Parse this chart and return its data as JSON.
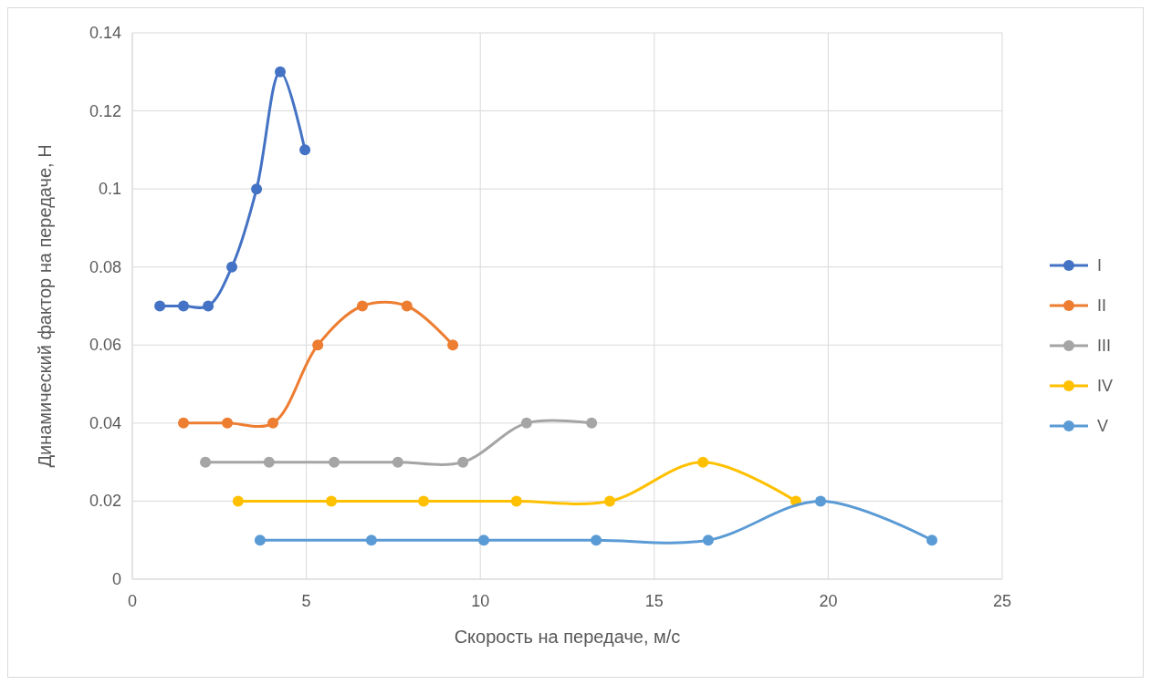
{
  "chart_data": {
    "type": "line",
    "xlabel": "Скорость на передаче, м/с",
    "ylabel": "Динамический фактор на передаче, Н",
    "xlim": [
      0,
      25
    ],
    "xticks": [
      0,
      5,
      10,
      15,
      20,
      25
    ],
    "ylim": [
      0,
      0.14
    ],
    "yticks": [
      0,
      0.02,
      0.04,
      0.06,
      0.08,
      0.1,
      0.12,
      0.14
    ],
    "grid": true,
    "legend": "right",
    "marker": "circle",
    "series": [
      {
        "name": "I",
        "color": "#4472c4",
        "x": [
          0.79,
          1.47,
          2.18,
          2.86,
          3.57,
          4.25,
          4.96
        ],
        "values": [
          0.07,
          0.07,
          0.07,
          0.08,
          0.1,
          0.13,
          0.11
        ]
      },
      {
        "name": "II",
        "color": "#ed7d31",
        "x": [
          1.47,
          2.73,
          4.04,
          5.33,
          6.61,
          7.89,
          9.21
        ],
        "values": [
          0.04,
          0.04,
          0.04,
          0.06,
          0.07,
          0.07,
          0.06
        ]
      },
      {
        "name": "III",
        "color": "#a5a5a5",
        "x": [
          2.1,
          3.93,
          5.8,
          7.63,
          9.5,
          11.33,
          13.2
        ],
        "values": [
          0.03,
          0.03,
          0.03,
          0.03,
          0.03,
          0.04,
          0.04
        ]
      },
      {
        "name": "IV",
        "color": "#ffc000",
        "x": [
          3.04,
          5.72,
          8.37,
          11.04,
          13.72,
          16.4,
          19.07
        ],
        "values": [
          0.02,
          0.02,
          0.02,
          0.02,
          0.02,
          0.03,
          0.02
        ]
      },
      {
        "name": "V",
        "color": "#5b9bd5",
        "x": [
          3.67,
          6.87,
          10.1,
          13.33,
          16.55,
          19.78,
          22.98
        ],
        "values": [
          0.01,
          0.01,
          0.01,
          0.01,
          0.01,
          0.02,
          0.01
        ]
      }
    ]
  }
}
